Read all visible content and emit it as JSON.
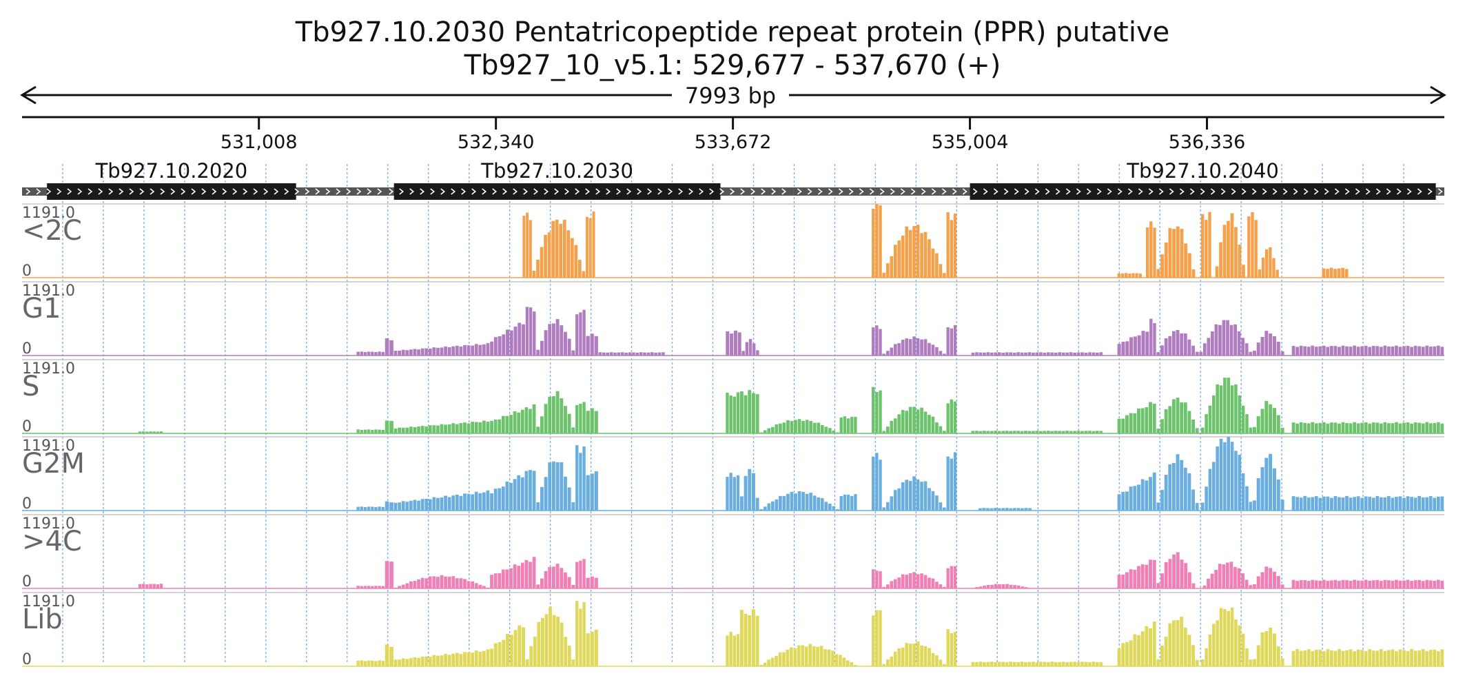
{
  "header": {
    "title_line1": "Tb927.10.2030  Pentatricopeptide repeat protein (PPR)  putative",
    "title_line2": "Tb927_10_v5.1: 529,677 - 537,670 (+)",
    "span_label": "7993 bp"
  },
  "colors": {
    "<2C": "#f5a04a",
    "G1": "#b07cc0",
    "S": "#6cc36c",
    "G2M": "#6aaee0",
    ">4C": "#ef7fb5",
    "Lib": "#e0d85a",
    "gene_body": "#1a1a1a",
    "gene_utr": "#555555",
    "grid": "#7aaedc"
  },
  "chart_data": {
    "type": "area",
    "region": {
      "chrom": "Tb927_10_v5.1",
      "start": 529677,
      "end": 537670,
      "strand": "+",
      "length_bp": 7993
    },
    "x_ticks": [
      531008,
      532340,
      533672,
      535004,
      536336
    ],
    "x_tick_labels": [
      "531,008",
      "532,340",
      "533,672",
      "535,004",
      "536,336"
    ],
    "genes": [
      {
        "name": "Tb927.10.2020",
        "cds": [
          529817,
          531217
        ],
        "utr": [
          529677,
          532032
        ]
      },
      {
        "name": "Tb927.10.2030",
        "cds": [
          531767,
          533602
        ],
        "utr": [
          531717,
          534012
        ]
      },
      {
        "name": "Tb927.10.2040",
        "cds": [
          535004,
          537622
        ],
        "utr": [
          534012,
          537670
        ]
      }
    ],
    "y_max": 1191.0,
    "y_max_label": "1191.0",
    "y_min_label": "0",
    "tracks": [
      {
        "name": "<2C",
        "segments": [
          {
            "start": 532490,
            "end": 532545,
            "peak": 1000,
            "shape": "flat"
          },
          {
            "start": 532545,
            "end": 532845,
            "peak": 930,
            "shape": "dome"
          },
          {
            "start": 532845,
            "end": 532900,
            "peak": 1000,
            "shape": "flat"
          },
          {
            "start": 534452,
            "end": 534512,
            "peak": 1191,
            "shape": "flat"
          },
          {
            "start": 534512,
            "end": 534872,
            "peak": 830,
            "shape": "dome"
          },
          {
            "start": 534872,
            "end": 534932,
            "peak": 1000,
            "shape": "flat"
          },
          {
            "start": 535833,
            "end": 535973,
            "peak": 70,
            "shape": "flat"
          },
          {
            "start": 535993,
            "end": 536053,
            "peak": 850,
            "shape": "flat"
          },
          {
            "start": 536053,
            "end": 536273,
            "peak": 840,
            "shape": "dome"
          },
          {
            "start": 536303,
            "end": 536363,
            "peak": 1000,
            "shape": "flat"
          },
          {
            "start": 536383,
            "end": 536553,
            "peak": 1000,
            "shape": "dome"
          },
          {
            "start": 536563,
            "end": 536623,
            "peak": 1000,
            "shape": "flat"
          },
          {
            "start": 536623,
            "end": 536743,
            "peak": 480,
            "shape": "dome"
          },
          {
            "start": 536983,
            "end": 537133,
            "peak": 150,
            "shape": "flat"
          }
        ]
      },
      {
        "name": "G1",
        "segments": [
          {
            "start": 531557,
            "end": 531717,
            "peak": 60,
            "shape": "flat"
          },
          {
            "start": 531717,
            "end": 531767,
            "peak": 260,
            "shape": "flat"
          },
          {
            "start": 531767,
            "end": 532307,
            "peak": 190,
            "shape": "rise"
          },
          {
            "start": 532307,
            "end": 532507,
            "peak": 560,
            "shape": "rise"
          },
          {
            "start": 532507,
            "end": 532567,
            "peak": 760,
            "shape": "flat"
          },
          {
            "start": 532567,
            "end": 532787,
            "peak": 560,
            "shape": "dome"
          },
          {
            "start": 532787,
            "end": 532847,
            "peak": 700,
            "shape": "flat"
          },
          {
            "start": 532847,
            "end": 532917,
            "peak": 330,
            "shape": "flat"
          },
          {
            "start": 532917,
            "end": 533292,
            "peak": 50,
            "shape": "flat"
          },
          {
            "start": 533632,
            "end": 533722,
            "peak": 380,
            "shape": "flat"
          },
          {
            "start": 533722,
            "end": 533822,
            "peak": 260,
            "shape": "dome"
          },
          {
            "start": 534452,
            "end": 534512,
            "peak": 460,
            "shape": "flat"
          },
          {
            "start": 534512,
            "end": 534872,
            "peak": 290,
            "shape": "dome"
          },
          {
            "start": 534872,
            "end": 534932,
            "peak": 460,
            "shape": "flat"
          },
          {
            "start": 535012,
            "end": 535753,
            "peak": 50,
            "shape": "flat"
          },
          {
            "start": 535833,
            "end": 536013,
            "peak": 420,
            "shape": "rise"
          },
          {
            "start": 536013,
            "end": 536053,
            "peak": 560,
            "shape": "flat"
          },
          {
            "start": 536053,
            "end": 536293,
            "peak": 400,
            "shape": "dome"
          },
          {
            "start": 536293,
            "end": 536593,
            "peak": 560,
            "shape": "dome"
          },
          {
            "start": 536593,
            "end": 536773,
            "peak": 380,
            "shape": "dome"
          },
          {
            "start": 536813,
            "end": 537670,
            "peak": 150,
            "shape": "flat"
          }
        ]
      },
      {
        "name": "S",
        "segments": [
          {
            "start": 530331,
            "end": 530471,
            "peak": 30,
            "shape": "flat"
          },
          {
            "start": 531557,
            "end": 531717,
            "peak": 60,
            "shape": "flat"
          },
          {
            "start": 531717,
            "end": 531767,
            "peak": 210,
            "shape": "flat"
          },
          {
            "start": 531767,
            "end": 532307,
            "peak": 200,
            "shape": "rise"
          },
          {
            "start": 532307,
            "end": 532567,
            "peak": 460,
            "shape": "rise"
          },
          {
            "start": 532567,
            "end": 532787,
            "peak": 650,
            "shape": "dome"
          },
          {
            "start": 532787,
            "end": 532847,
            "peak": 480,
            "shape": "flat"
          },
          {
            "start": 532847,
            "end": 532917,
            "peak": 380,
            "shape": "flat"
          },
          {
            "start": 533632,
            "end": 533712,
            "peak": 620,
            "shape": "flat"
          },
          {
            "start": 533712,
            "end": 533822,
            "peak": 660,
            "shape": "flat"
          },
          {
            "start": 533822,
            "end": 534272,
            "peak": 220,
            "shape": "dome"
          },
          {
            "start": 534272,
            "end": 534372,
            "peak": 260,
            "shape": "flat"
          },
          {
            "start": 534452,
            "end": 534512,
            "peak": 700,
            "shape": "flat"
          },
          {
            "start": 534512,
            "end": 534872,
            "peak": 420,
            "shape": "dome"
          },
          {
            "start": 534872,
            "end": 534932,
            "peak": 520,
            "shape": "flat"
          },
          {
            "start": 535012,
            "end": 535753,
            "peak": 40,
            "shape": "flat"
          },
          {
            "start": 535833,
            "end": 536053,
            "peak": 520,
            "shape": "rise"
          },
          {
            "start": 536053,
            "end": 536293,
            "peak": 560,
            "shape": "dome"
          },
          {
            "start": 536303,
            "end": 536593,
            "peak": 880,
            "shape": "dome"
          },
          {
            "start": 536593,
            "end": 536773,
            "peak": 500,
            "shape": "dome"
          },
          {
            "start": 536813,
            "end": 537670,
            "peak": 170,
            "shape": "flat"
          }
        ]
      },
      {
        "name": "G2M",
        "segments": [
          {
            "start": 531557,
            "end": 531717,
            "peak": 60,
            "shape": "flat"
          },
          {
            "start": 531717,
            "end": 531767,
            "peak": 140,
            "shape": "flat"
          },
          {
            "start": 531767,
            "end": 532307,
            "peak": 310,
            "shape": "rise"
          },
          {
            "start": 532307,
            "end": 532567,
            "peak": 700,
            "shape": "rise"
          },
          {
            "start": 532567,
            "end": 532787,
            "peak": 820,
            "shape": "dome"
          },
          {
            "start": 532787,
            "end": 532847,
            "peak": 1000,
            "shape": "flat"
          },
          {
            "start": 532847,
            "end": 532917,
            "peak": 600,
            "shape": "flat"
          },
          {
            "start": 533632,
            "end": 533712,
            "peak": 570,
            "shape": "flat"
          },
          {
            "start": 533712,
            "end": 533822,
            "peak": 700,
            "shape": "dome"
          },
          {
            "start": 533822,
            "end": 534272,
            "peak": 300,
            "shape": "dome"
          },
          {
            "start": 534272,
            "end": 534372,
            "peak": 250,
            "shape": "flat"
          },
          {
            "start": 534452,
            "end": 534512,
            "peak": 880,
            "shape": "flat"
          },
          {
            "start": 534512,
            "end": 534872,
            "peak": 520,
            "shape": "dome"
          },
          {
            "start": 534872,
            "end": 534932,
            "peak": 880,
            "shape": "flat"
          },
          {
            "start": 535052,
            "end": 535353,
            "peak": 40,
            "shape": "flat"
          },
          {
            "start": 535833,
            "end": 536053,
            "peak": 600,
            "shape": "rise"
          },
          {
            "start": 536053,
            "end": 536293,
            "peak": 860,
            "shape": "dome"
          },
          {
            "start": 536303,
            "end": 536593,
            "peak": 1191,
            "shape": "dome"
          },
          {
            "start": 536593,
            "end": 536773,
            "peak": 880,
            "shape": "dome"
          },
          {
            "start": 536813,
            "end": 537670,
            "peak": 220,
            "shape": "flat"
          }
        ]
      },
      {
        "name": ">4C",
        "segments": [
          {
            "start": 530331,
            "end": 530471,
            "peak": 70,
            "shape": "flat"
          },
          {
            "start": 531557,
            "end": 531717,
            "peak": 40,
            "shape": "flat"
          },
          {
            "start": 531717,
            "end": 531767,
            "peak": 450,
            "shape": "flat"
          },
          {
            "start": 531767,
            "end": 532307,
            "peak": 200,
            "shape": "dome"
          },
          {
            "start": 532307,
            "end": 532567,
            "peak": 500,
            "shape": "rise"
          },
          {
            "start": 532567,
            "end": 532787,
            "peak": 380,
            "shape": "dome"
          },
          {
            "start": 532787,
            "end": 532847,
            "peak": 450,
            "shape": "flat"
          },
          {
            "start": 532847,
            "end": 532917,
            "peak": 180,
            "shape": "flat"
          },
          {
            "start": 534452,
            "end": 534512,
            "peak": 290,
            "shape": "flat"
          },
          {
            "start": 534512,
            "end": 534872,
            "peak": 250,
            "shape": "dome"
          },
          {
            "start": 534872,
            "end": 534932,
            "peak": 350,
            "shape": "flat"
          },
          {
            "start": 535012,
            "end": 535353,
            "peak": 70,
            "shape": "dome"
          },
          {
            "start": 535833,
            "end": 536053,
            "peak": 480,
            "shape": "rise"
          },
          {
            "start": 536053,
            "end": 536273,
            "peak": 560,
            "shape": "dome"
          },
          {
            "start": 536313,
            "end": 536593,
            "peak": 420,
            "shape": "dome"
          },
          {
            "start": 536593,
            "end": 536773,
            "peak": 340,
            "shape": "dome"
          },
          {
            "start": 536813,
            "end": 537670,
            "peak": 130,
            "shape": "flat"
          }
        ]
      },
      {
        "name": "Lib",
        "segments": [
          {
            "start": 531557,
            "end": 531717,
            "peak": 90,
            "shape": "flat"
          },
          {
            "start": 531717,
            "end": 531767,
            "peak": 330,
            "shape": "flat"
          },
          {
            "start": 531767,
            "end": 532307,
            "peak": 260,
            "shape": "rise"
          },
          {
            "start": 532307,
            "end": 532507,
            "peak": 700,
            "shape": "rise"
          },
          {
            "start": 532507,
            "end": 532787,
            "peak": 900,
            "shape": "dome"
          },
          {
            "start": 532787,
            "end": 532847,
            "peak": 1000,
            "shape": "flat"
          },
          {
            "start": 532847,
            "end": 532917,
            "peak": 560,
            "shape": "flat"
          },
          {
            "start": 533632,
            "end": 533712,
            "peak": 520,
            "shape": "flat"
          },
          {
            "start": 533712,
            "end": 533822,
            "peak": 860,
            "shape": "flat"
          },
          {
            "start": 533822,
            "end": 534372,
            "peak": 340,
            "shape": "dome"
          },
          {
            "start": 534452,
            "end": 534512,
            "peak": 880,
            "shape": "flat"
          },
          {
            "start": 534512,
            "end": 534872,
            "peak": 380,
            "shape": "dome"
          },
          {
            "start": 534872,
            "end": 534932,
            "peak": 560,
            "shape": "flat"
          },
          {
            "start": 535012,
            "end": 535753,
            "peak": 70,
            "shape": "flat"
          },
          {
            "start": 535833,
            "end": 536053,
            "peak": 720,
            "shape": "rise"
          },
          {
            "start": 536053,
            "end": 536293,
            "peak": 780,
            "shape": "dome"
          },
          {
            "start": 536303,
            "end": 536593,
            "peak": 940,
            "shape": "dome"
          },
          {
            "start": 536593,
            "end": 536773,
            "peak": 620,
            "shape": "dome"
          },
          {
            "start": 536813,
            "end": 537670,
            "peak": 260,
            "shape": "flat"
          }
        ]
      }
    ]
  }
}
